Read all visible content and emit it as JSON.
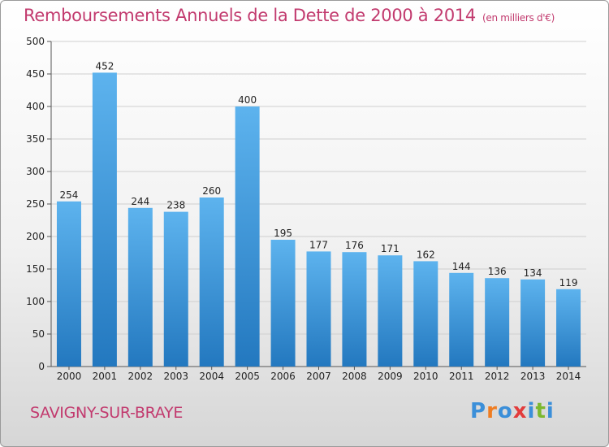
{
  "header": {
    "title": "Remboursements Annuels de la Dette de 2000 à 2014",
    "unit": "(en milliers d'€)"
  },
  "footer": {
    "city": "SAVIGNY-SUR-BRAYE",
    "logo_text": "Proxiti"
  },
  "colors": {
    "bar_top": "#5db3ee",
    "bar_bottom": "#2378bf",
    "accent": "#c23a6e",
    "logo": [
      "#3b8fd9",
      "#ef7d22",
      "#3b8fd9",
      "#e23c3c",
      "#3b8fd9",
      "#7cb82f",
      "#3b8fd9"
    ]
  },
  "chart_data": {
    "type": "bar",
    "title": "Remboursements Annuels de la Dette de 2000 à 2014",
    "categories": [
      "2000",
      "2001",
      "2002",
      "2003",
      "2004",
      "2005",
      "2006",
      "2007",
      "2008",
      "2009",
      "2010",
      "2011",
      "2012",
      "2013",
      "2014"
    ],
    "values": [
      254,
      452,
      244,
      238,
      260,
      400,
      195,
      177,
      176,
      171,
      162,
      144,
      136,
      134,
      119
    ],
    "ylim": [
      0,
      500
    ],
    "yticks": [
      0,
      50,
      100,
      150,
      200,
      250,
      300,
      350,
      400,
      450,
      500
    ],
    "grid": true,
    "legend": "none"
  }
}
